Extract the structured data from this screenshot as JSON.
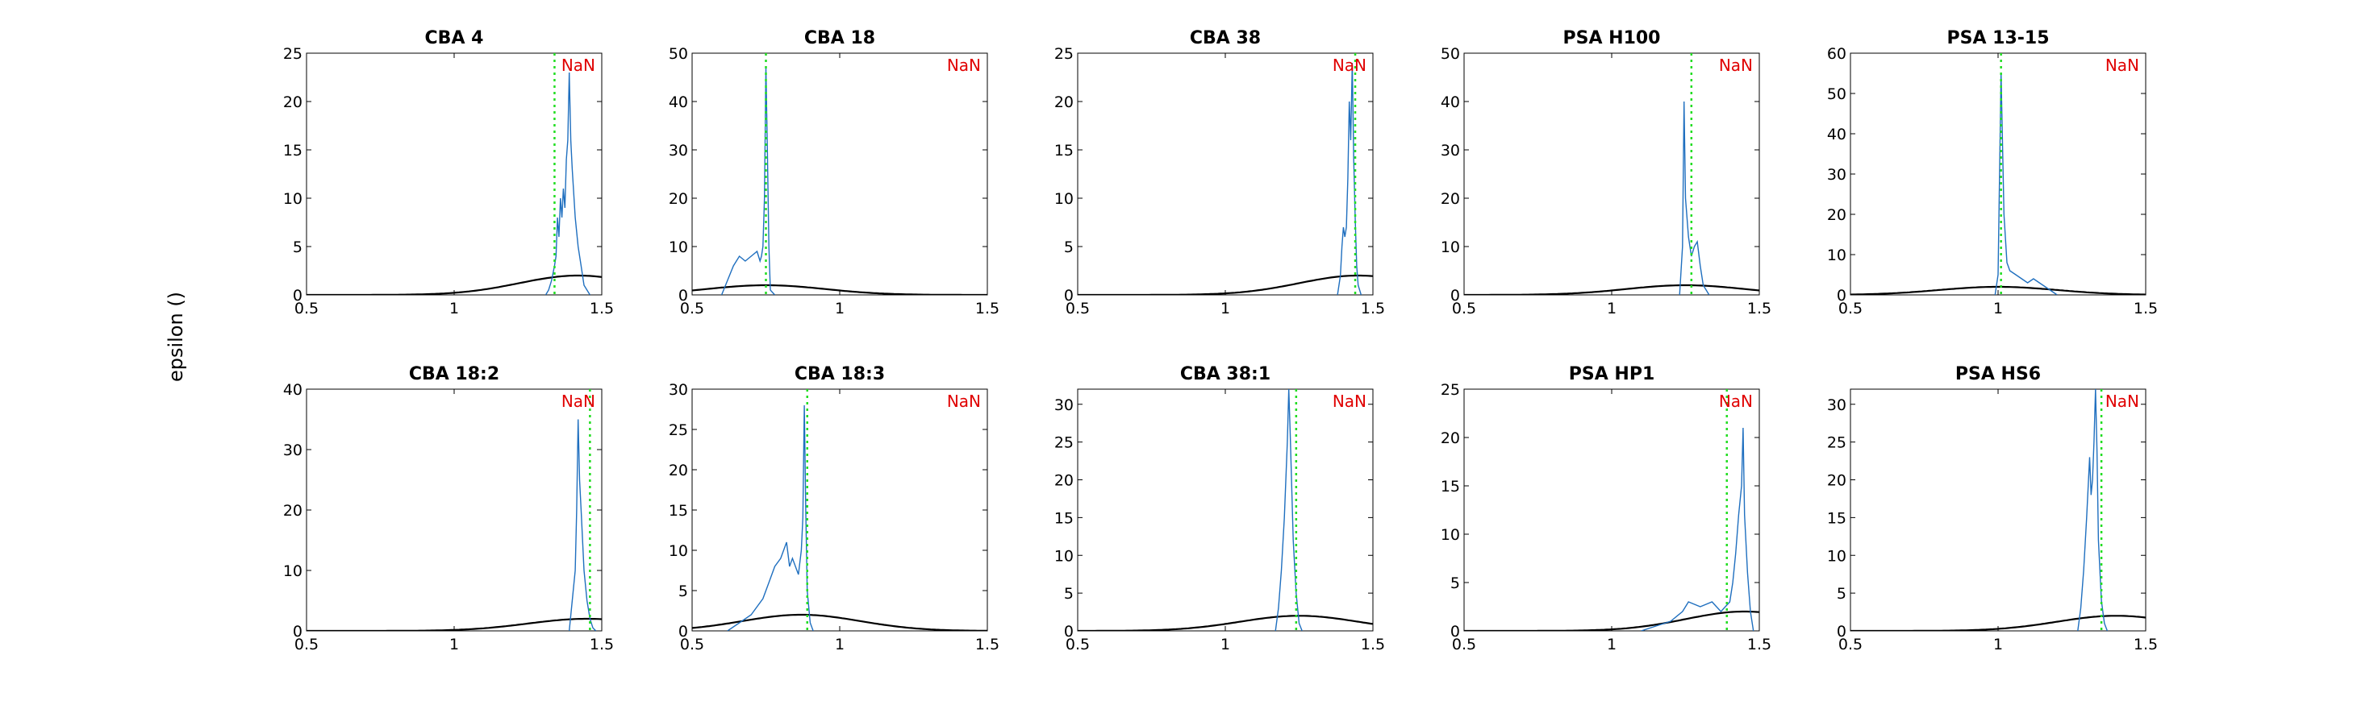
{
  "figure": {
    "ylabel": "epsilon ()"
  },
  "colors": {
    "hist": "#1f6fbf",
    "fit": "#000000",
    "marker": "#22dd22",
    "nan": "#e00000"
  },
  "chart_data": [
    {
      "type": "line",
      "title": "CBA 4",
      "annotation": "NaN",
      "xlim": [
        0.5,
        1.5
      ],
      "ylim": [
        0,
        25
      ],
      "xticks": [
        "0.5",
        "1",
        "1.5"
      ],
      "yticks": [
        "0",
        "5",
        "10",
        "15",
        "20",
        "25"
      ],
      "marker_x": 1.34,
      "fit": {
        "mean": 1.42,
        "sd": 0.2,
        "peak": 2.0
      },
      "hist": [
        [
          1.31,
          0
        ],
        [
          1.32,
          0.5
        ],
        [
          1.33,
          1.5
        ],
        [
          1.34,
          3
        ],
        [
          1.345,
          4
        ],
        [
          1.35,
          8
        ],
        [
          1.355,
          6
        ],
        [
          1.36,
          10
        ],
        [
          1.365,
          8
        ],
        [
          1.37,
          11
        ],
        [
          1.375,
          9
        ],
        [
          1.38,
          14
        ],
        [
          1.385,
          16
        ],
        [
          1.39,
          23
        ],
        [
          1.395,
          16
        ],
        [
          1.4,
          13
        ],
        [
          1.41,
          8
        ],
        [
          1.42,
          5
        ],
        [
          1.43,
          3
        ],
        [
          1.44,
          1
        ],
        [
          1.46,
          0
        ]
      ]
    },
    {
      "type": "line",
      "title": "CBA 18",
      "annotation": "NaN",
      "xlim": [
        0.5,
        1.5
      ],
      "ylim": [
        0,
        50
      ],
      "xticks": [
        "0.5",
        "1",
        "1.5"
      ],
      "yticks": [
        "0",
        "10",
        "20",
        "30",
        "40",
        "50"
      ],
      "marker_x": 0.75,
      "fit": {
        "mean": 0.75,
        "sd": 0.2,
        "peak": 2.0
      },
      "hist": [
        [
          0.6,
          0
        ],
        [
          0.62,
          3
        ],
        [
          0.64,
          6
        ],
        [
          0.66,
          8
        ],
        [
          0.68,
          7
        ],
        [
          0.7,
          8
        ],
        [
          0.72,
          9
        ],
        [
          0.73,
          7
        ],
        [
          0.735,
          8
        ],
        [
          0.74,
          10
        ],
        [
          0.745,
          20
        ],
        [
          0.75,
          47
        ],
        [
          0.755,
          30
        ],
        [
          0.76,
          10
        ],
        [
          0.765,
          1
        ],
        [
          0.78,
          0
        ]
      ]
    },
    {
      "type": "line",
      "title": "CBA 38",
      "annotation": "NaN",
      "xlim": [
        0.5,
        1.5
      ],
      "ylim": [
        0,
        25
      ],
      "xticks": [
        "0.5",
        "1",
        "1.5"
      ],
      "yticks": [
        "0",
        "5",
        "10",
        "15",
        "20",
        "25"
      ],
      "marker_x": 1.44,
      "fit": {
        "mean": 1.45,
        "sd": 0.2,
        "peak": 2.0
      },
      "hist": [
        [
          1.38,
          0
        ],
        [
          1.39,
          2
        ],
        [
          1.395,
          5
        ],
        [
          1.4,
          7
        ],
        [
          1.405,
          6
        ],
        [
          1.41,
          7
        ],
        [
          1.415,
          12
        ],
        [
          1.42,
          20
        ],
        [
          1.425,
          16
        ],
        [
          1.43,
          24
        ],
        [
          1.435,
          14
        ],
        [
          1.44,
          8
        ],
        [
          1.445,
          3
        ],
        [
          1.45,
          1
        ],
        [
          1.46,
          0
        ]
      ]
    },
    {
      "type": "line",
      "title": "PSA H100",
      "annotation": "NaN",
      "xlim": [
        0.5,
        1.5
      ],
      "ylim": [
        0,
        50
      ],
      "xticks": [
        "0.5",
        "1",
        "1.5"
      ],
      "yticks": [
        "0",
        "10",
        "20",
        "30",
        "40",
        "50"
      ],
      "marker_x": 1.27,
      "fit": {
        "mean": 1.25,
        "sd": 0.2,
        "peak": 2.0
      },
      "hist": [
        [
          1.23,
          0
        ],
        [
          1.24,
          10
        ],
        [
          1.245,
          40
        ],
        [
          1.25,
          20
        ],
        [
          1.26,
          12
        ],
        [
          1.27,
          8
        ],
        [
          1.28,
          10
        ],
        [
          1.29,
          11
        ],
        [
          1.3,
          6
        ],
        [
          1.31,
          2
        ],
        [
          1.33,
          0
        ]
      ]
    },
    {
      "type": "line",
      "title": "PSA 13-15",
      "annotation": "NaN",
      "xlim": [
        0.5,
        1.5
      ],
      "ylim": [
        0,
        60
      ],
      "xticks": [
        "0.5",
        "1",
        "1.5"
      ],
      "yticks": [
        "0",
        "10",
        "20",
        "30",
        "40",
        "50",
        "60"
      ],
      "marker_x": 1.01,
      "fit": {
        "mean": 1.0,
        "sd": 0.2,
        "peak": 2.0
      },
      "hist": [
        [
          0.99,
          0
        ],
        [
          1.0,
          5
        ],
        [
          1.01,
          55
        ],
        [
          1.02,
          20
        ],
        [
          1.03,
          8
        ],
        [
          1.04,
          6
        ],
        [
          1.06,
          5
        ],
        [
          1.08,
          4
        ],
        [
          1.1,
          3
        ],
        [
          1.12,
          4
        ],
        [
          1.14,
          3
        ],
        [
          1.16,
          2
        ],
        [
          1.18,
          1
        ],
        [
          1.2,
          0
        ]
      ]
    },
    {
      "type": "line",
      "title": "CBA 18:2",
      "annotation": "NaN",
      "xlim": [
        0.5,
        1.5
      ],
      "ylim": [
        0,
        40
      ],
      "xticks": [
        "0.5",
        "1",
        "1.5"
      ],
      "yticks": [
        "0",
        "10",
        "20",
        "30",
        "40"
      ],
      "marker_x": 1.46,
      "fit": {
        "mean": 1.45,
        "sd": 0.2,
        "peak": 2.0
      },
      "hist": [
        [
          1.39,
          0
        ],
        [
          1.4,
          5
        ],
        [
          1.41,
          10
        ],
        [
          1.415,
          20
        ],
        [
          1.42,
          35
        ],
        [
          1.425,
          25
        ],
        [
          1.43,
          20
        ],
        [
          1.44,
          10
        ],
        [
          1.45,
          5
        ],
        [
          1.46,
          2
        ],
        [
          1.47,
          0.5
        ],
        [
          1.48,
          0
        ]
      ]
    },
    {
      "type": "line",
      "title": "CBA 18:3",
      "annotation": "NaN",
      "xlim": [
        0.5,
        1.5
      ],
      "ylim": [
        0,
        30
      ],
      "xticks": [
        "0.5",
        "1",
        "1.5"
      ],
      "yticks": [
        "0",
        "5",
        "10",
        "15",
        "20",
        "25",
        "30"
      ],
      "marker_x": 0.89,
      "fit": {
        "mean": 0.87,
        "sd": 0.2,
        "peak": 2.0
      },
      "hist": [
        [
          0.62,
          0
        ],
        [
          0.66,
          1
        ],
        [
          0.7,
          2
        ],
        [
          0.74,
          4
        ],
        [
          0.76,
          6
        ],
        [
          0.78,
          8
        ],
        [
          0.8,
          9
        ],
        [
          0.82,
          11
        ],
        [
          0.83,
          8
        ],
        [
          0.84,
          9
        ],
        [
          0.86,
          7
        ],
        [
          0.87,
          10
        ],
        [
          0.875,
          14
        ],
        [
          0.88,
          28
        ],
        [
          0.885,
          15
        ],
        [
          0.89,
          5
        ],
        [
          0.9,
          1
        ],
        [
          0.91,
          0
        ]
      ]
    },
    {
      "type": "line",
      "title": "CBA 38:1",
      "annotation": "NaN",
      "xlim": [
        0.5,
        1.5
      ],
      "ylim": [
        0,
        32
      ],
      "xticks": [
        "0.5",
        "1",
        "1.5"
      ],
      "yticks": [
        "0",
        "5",
        "10",
        "15",
        "20",
        "25",
        "30"
      ],
      "marker_x": 1.24,
      "fit": {
        "mean": 1.25,
        "sd": 0.2,
        "peak": 2.0
      },
      "hist": [
        [
          1.17,
          0
        ],
        [
          1.18,
          3
        ],
        [
          1.19,
          8
        ],
        [
          1.2,
          15
        ],
        [
          1.21,
          25
        ],
        [
          1.215,
          32
        ],
        [
          1.22,
          26
        ],
        [
          1.23,
          12
        ],
        [
          1.24,
          5
        ],
        [
          1.25,
          1
        ],
        [
          1.26,
          0
        ]
      ]
    },
    {
      "type": "line",
      "title": "PSA HP1",
      "annotation": "NaN",
      "xlim": [
        0.5,
        1.5
      ],
      "ylim": [
        0,
        25
      ],
      "xticks": [
        "0.5",
        "1",
        "1.5"
      ],
      "yticks": [
        "0",
        "5",
        "10",
        "15",
        "20",
        "25"
      ],
      "marker_x": 1.39,
      "fit": {
        "mean": 1.45,
        "sd": 0.2,
        "peak": 2.0
      },
      "hist": [
        [
          1.1,
          0
        ],
        [
          1.15,
          0.5
        ],
        [
          1.2,
          1
        ],
        [
          1.24,
          2
        ],
        [
          1.26,
          3
        ],
        [
          1.3,
          2.5
        ],
        [
          1.34,
          3
        ],
        [
          1.37,
          2
        ],
        [
          1.4,
          3
        ],
        [
          1.41,
          5
        ],
        [
          1.42,
          8
        ],
        [
          1.43,
          12
        ],
        [
          1.44,
          15
        ],
        [
          1.445,
          21
        ],
        [
          1.45,
          12
        ],
        [
          1.46,
          6
        ],
        [
          1.47,
          2
        ],
        [
          1.48,
          0
        ]
      ]
    },
    {
      "type": "line",
      "title": "PSA HS6",
      "annotation": "NaN",
      "xlim": [
        0.5,
        1.5
      ],
      "ylim": [
        0,
        32
      ],
      "xticks": [
        "0.5",
        "1",
        "1.5"
      ],
      "yticks": [
        "0",
        "5",
        "10",
        "15",
        "20",
        "25",
        "30"
      ],
      "marker_x": 1.35,
      "fit": {
        "mean": 1.4,
        "sd": 0.2,
        "peak": 2.0
      },
      "hist": [
        [
          1.27,
          0
        ],
        [
          1.28,
          3
        ],
        [
          1.29,
          8
        ],
        [
          1.3,
          15
        ],
        [
          1.31,
          23
        ],
        [
          1.315,
          18
        ],
        [
          1.32,
          20
        ],
        [
          1.325,
          25
        ],
        [
          1.33,
          32
        ],
        [
          1.335,
          24
        ],
        [
          1.34,
          12
        ],
        [
          1.35,
          4
        ],
        [
          1.36,
          1
        ],
        [
          1.37,
          0
        ]
      ]
    }
  ]
}
